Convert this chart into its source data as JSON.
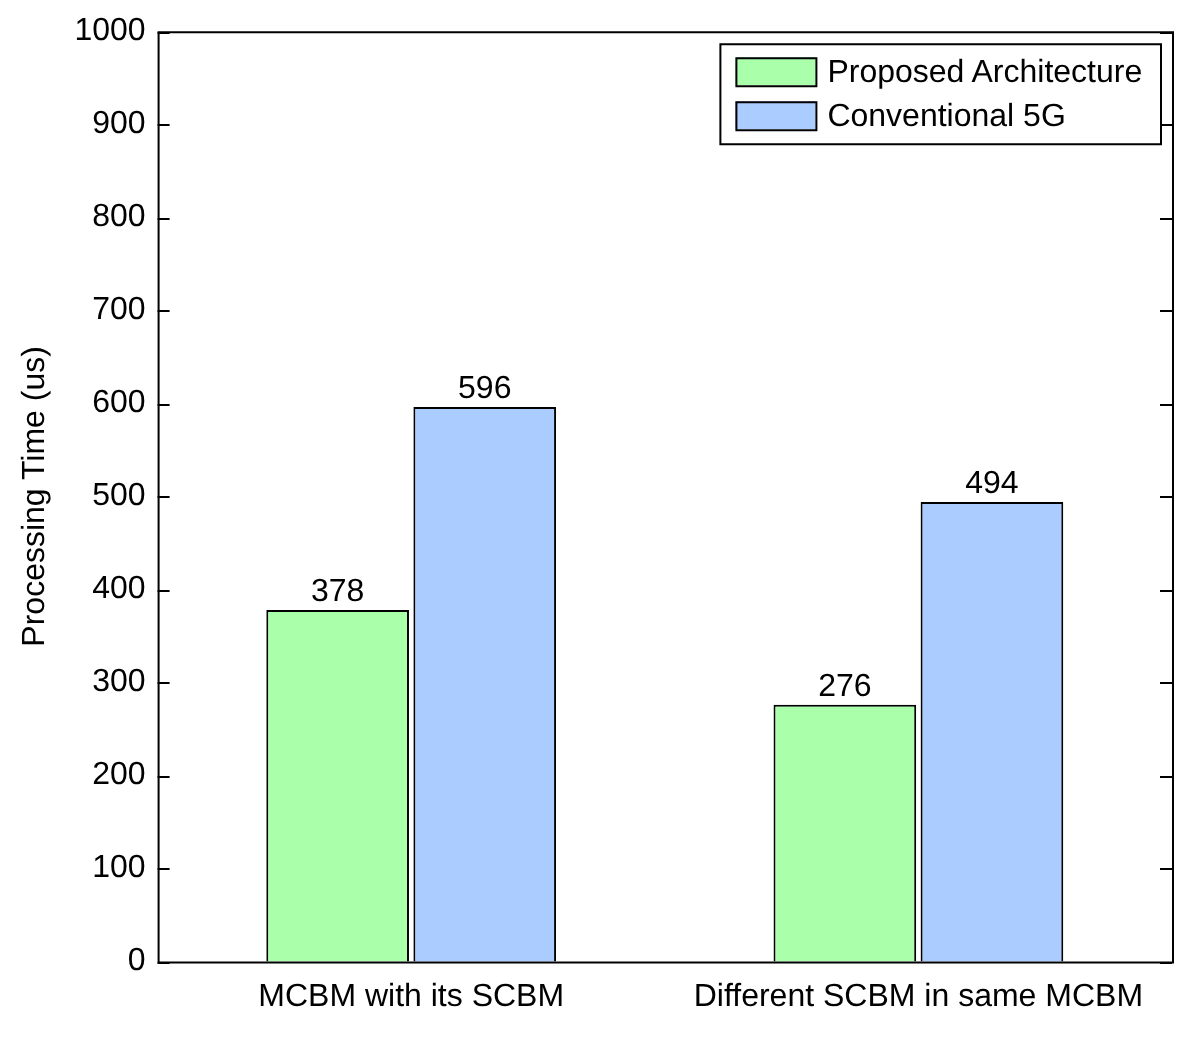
{
  "chart_data": {
    "type": "bar",
    "ylabel": "Processing Time (us)",
    "categories": [
      "MCBM with its SCBM",
      "Different SCBM in same MCBM"
    ],
    "series": [
      {
        "name": "Proposed Architecture",
        "color": "#aaffaa",
        "values": [
          378,
          276
        ]
      },
      {
        "name": "Conventional 5G",
        "color": "#aaccff",
        "values": [
          596,
          494
        ]
      }
    ],
    "ylim": [
      0,
      1000
    ],
    "yticks": [
      0,
      100,
      200,
      300,
      400,
      500,
      600,
      700,
      800,
      900,
      1000
    ],
    "data_labels": true,
    "legend": "top right"
  }
}
